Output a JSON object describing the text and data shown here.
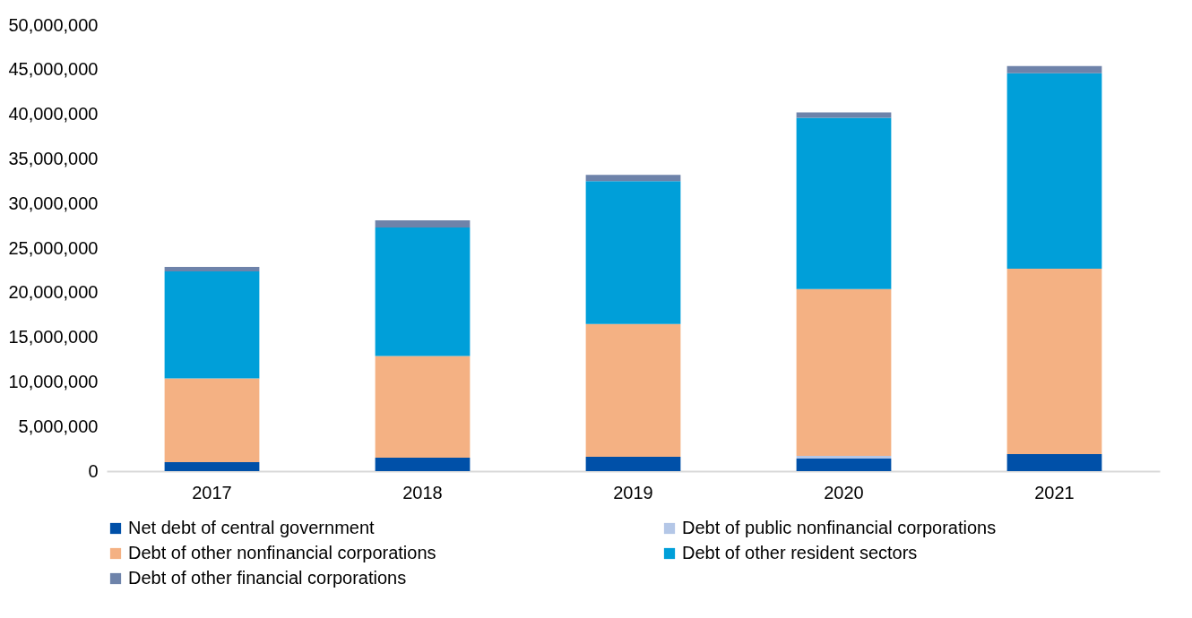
{
  "chart_data": {
    "type": "bar",
    "stacked": true,
    "categories": [
      "2017",
      "2018",
      "2019",
      "2020",
      "2021"
    ],
    "series": [
      {
        "name": "Net debt of central government",
        "color": "#0050a8",
        "values": [
          1000000,
          1500000,
          1600000,
          1400000,
          1900000
        ]
      },
      {
        "name": "Debt of public nonfinancial corporations",
        "color": "#b4c7e7",
        "values": [
          null,
          null,
          null,
          300000,
          null
        ]
      },
      {
        "name": "Debt of other nonfinancial corporations",
        "color": "#f4b183",
        "values": [
          9400000,
          11400000,
          14900000,
          18700000,
          20800000
        ]
      },
      {
        "name": "Debt of other resident sectors",
        "color": "#009fd9",
        "values": [
          12000000,
          14400000,
          16000000,
          19200000,
          21900000
        ]
      },
      {
        "name": "Debt of other financial corporations",
        "color": "#6e83aa",
        "values": [
          500000,
          800000,
          700000,
          600000,
          800000
        ]
      }
    ],
    "ylim": [
      0,
      50000000
    ],
    "yticks": [
      0,
      {
        "value": 5000000,
        "label": "5,000,000"
      },
      {
        "value": 10000000,
        "label": "10,000,000"
      },
      {
        "value": 15000000,
        "label": "15,000,000"
      },
      {
        "value": 20000000,
        "label": "20,000,000"
      },
      {
        "value": 25000000,
        "label": "25,000,000"
      },
      {
        "value": 30000000,
        "label": "30,000,000"
      },
      {
        "value": 35000000,
        "label": "35,000,000"
      },
      {
        "value": 40000000,
        "label": "40,000,000"
      },
      {
        "value": 45000000,
        "label": "45,000,000"
      },
      {
        "value": 50000000,
        "label": "50,000,000"
      }
    ],
    "grid": false,
    "legend": "bottom"
  }
}
